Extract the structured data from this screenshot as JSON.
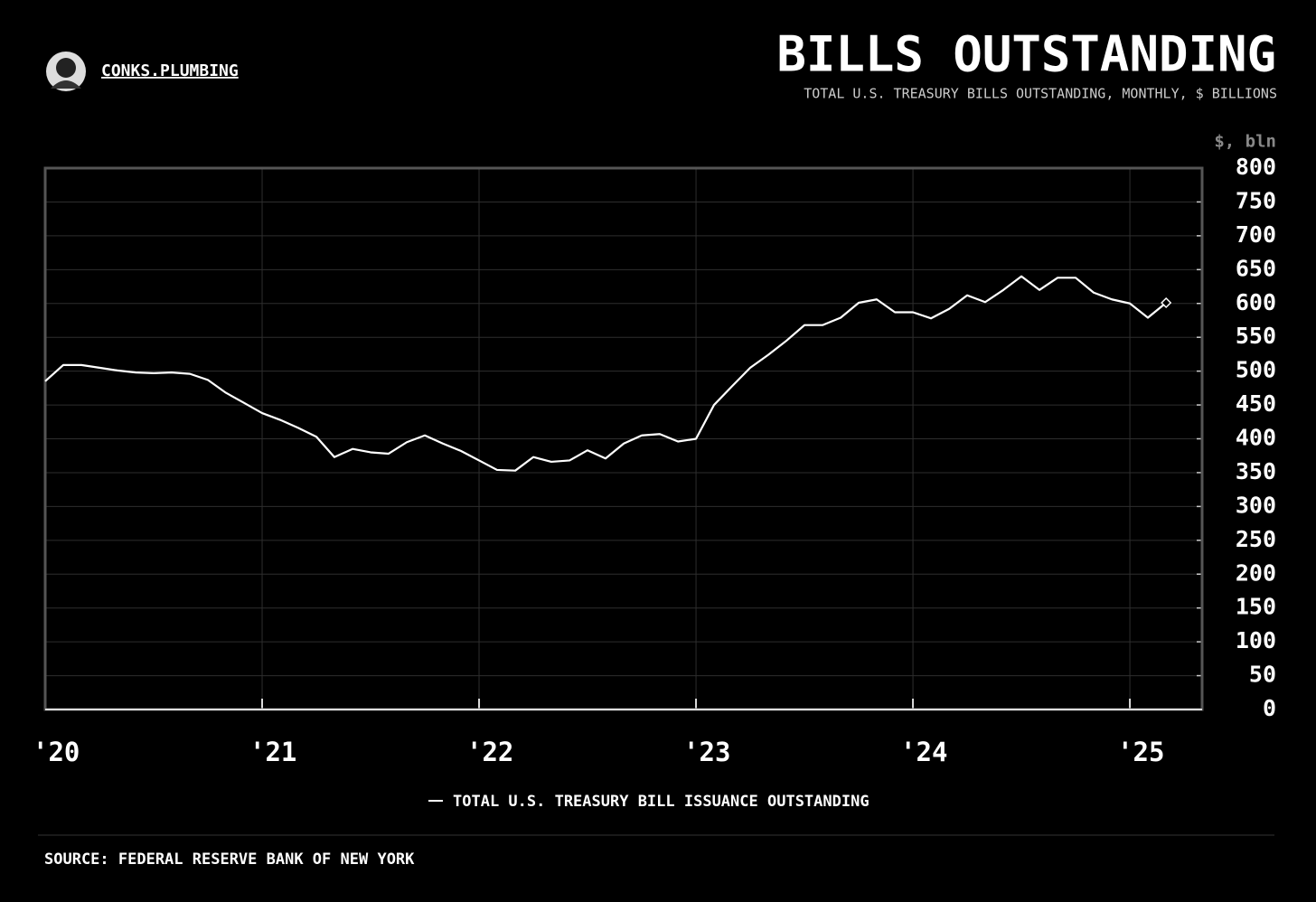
{
  "brand": "CONKS.PLUMBING",
  "source": "SOURCE: FEDERAL RESERVE BANK OF NEW YORK",
  "chart_data": {
    "type": "line",
    "title": "BILLS OUTSTANDING",
    "subtitle": "TOTAL U.S. TREASURY BILLS OUTSTANDING, MONTHLY, $ BILLIONS",
    "y_label": "$, bln",
    "x": [
      2020,
      2020.083,
      2020.167,
      2020.25,
      2020.333,
      2020.417,
      2020.5,
      2020.583,
      2020.667,
      2020.75,
      2020.833,
      2020.917,
      2021,
      2021.083,
      2021.167,
      2021.25,
      2021.333,
      2021.417,
      2021.5,
      2021.583,
      2021.667,
      2021.75,
      2021.833,
      2021.917,
      2022,
      2022.083,
      2022.167,
      2022.25,
      2022.333,
      2022.417,
      2022.5,
      2022.583,
      2022.667,
      2022.75,
      2022.833,
      2022.917,
      2023,
      2023.083,
      2023.167,
      2023.25,
      2023.333,
      2023.417,
      2023.5,
      2023.583,
      2023.667,
      2023.75,
      2023.833,
      2023.917,
      2024,
      2024.083,
      2024.167,
      2024.25,
      2024.333,
      2024.417,
      2024.5,
      2024.583,
      2024.667,
      2024.75,
      2024.833,
      2024.917,
      2025,
      2025.083,
      2025.167
    ],
    "series": [
      {
        "name": "TOTAL U.S. TREASURY BILL ISSUANCE OUTSTANDING",
        "color": "#ffffff",
        "values": [
          485,
          509,
          509,
          505,
          501,
          498,
          497,
          498,
          496,
          487,
          468,
          453,
          438,
          428,
          416,
          403,
          373,
          385,
          380,
          378,
          395,
          405,
          393,
          382,
          368,
          354,
          353,
          373,
          366,
          368,
          383,
          371,
          393,
          405,
          407,
          396,
          400,
          450,
          478,
          505,
          524,
          545,
          568,
          568,
          579,
          601,
          606,
          587,
          587,
          578,
          592,
          612,
          602,
          620,
          640,
          620,
          638,
          638,
          616,
          606,
          600,
          579,
          601
        ]
      }
    ],
    "xlim": [
      2020,
      2025.333
    ],
    "xticks": [
      {
        "value": 2020,
        "label": "'20"
      },
      {
        "value": 2021,
        "label": "'21"
      },
      {
        "value": 2022,
        "label": "'22"
      },
      {
        "value": 2023,
        "label": "'23"
      },
      {
        "value": 2024,
        "label": "'24"
      },
      {
        "value": 2025,
        "label": "'25"
      }
    ],
    "ylim": [
      0,
      800
    ],
    "yticks": [
      0,
      50,
      100,
      150,
      200,
      250,
      300,
      350,
      400,
      450,
      500,
      550,
      600,
      650,
      700,
      750,
      800
    ],
    "grid": true
  }
}
